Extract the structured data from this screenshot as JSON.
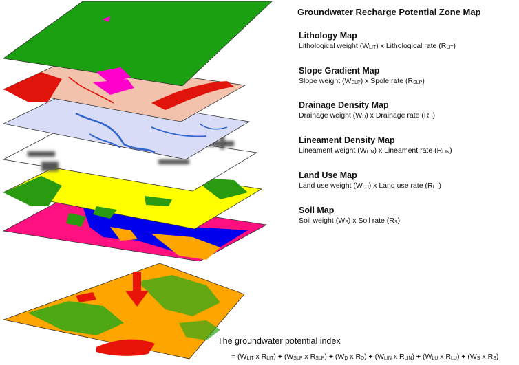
{
  "title": "Groundwater Recharge Potential Zone Map",
  "layers": [
    {
      "name": "Lithology Map",
      "formula": [
        {
          "t": "Lithological weight (W"
        },
        {
          "s": "LIT"
        },
        {
          "t": ") x Lithological rate (R"
        },
        {
          "s": "LIT"
        },
        {
          "t": ")"
        }
      ]
    },
    {
      "name": "Slope Gradient Map",
      "formula": [
        {
          "t": "Slope weight (W"
        },
        {
          "s": "SLP"
        },
        {
          "t": ") x Spole rate (R"
        },
        {
          "s": "SLP"
        },
        {
          "t": ")"
        }
      ]
    },
    {
      "name": "Drainage Density Map",
      "formula": [
        {
          "t": "Drainage weight (W"
        },
        {
          "s": "D"
        },
        {
          "t": ") x Drainage rate (R"
        },
        {
          "s": "D"
        },
        {
          "t": ")"
        }
      ]
    },
    {
      "name": "Lineament Density Map",
      "formula": [
        {
          "t": "Lineament weight (W"
        },
        {
          "s": "LIN"
        },
        {
          "t": ") x Lineament rate (R"
        },
        {
          "s": "LIN"
        },
        {
          "t": ")"
        }
      ]
    },
    {
      "name": "Land Use Map",
      "formula": [
        {
          "t": "Land use weight (W"
        },
        {
          "s": "LU"
        },
        {
          "t": ") x Land use rate (R"
        },
        {
          "s": "LU"
        },
        {
          "t": ")"
        }
      ]
    },
    {
      "name": "Soil Map",
      "formula": [
        {
          "t": "Soil weight (W"
        },
        {
          "s": "S"
        },
        {
          "t": ") x Soil rate (R"
        },
        {
          "s": "S"
        },
        {
          "t": ")"
        }
      ]
    }
  ],
  "index": {
    "title": "The groundwater potential index",
    "formula": [
      {
        "t": "= (W"
      },
      {
        "s": "LIT"
      },
      {
        "t": " x R"
      },
      {
        "s": "LIT"
      },
      {
        "t": ") "
      },
      {
        "b": "+"
      },
      {
        "t": " (W"
      },
      {
        "s": "SLP"
      },
      {
        "t": " x R"
      },
      {
        "s": "SLP"
      },
      {
        "t": ") "
      },
      {
        "b": "+"
      },
      {
        "t": " (W"
      },
      {
        "s": "D"
      },
      {
        "t": " x R"
      },
      {
        "s": "D"
      },
      {
        "t": ") "
      },
      {
        "b": "+"
      },
      {
        "t": " (W"
      },
      {
        "s": "LIN"
      },
      {
        "t": " x R"
      },
      {
        "s": "LIN"
      },
      {
        "t": ") "
      },
      {
        "b": "+"
      },
      {
        "t": " (W"
      },
      {
        "s": "LU"
      },
      {
        "t": " x R"
      },
      {
        "s": "LU"
      },
      {
        "t": ") "
      },
      {
        "b": "+"
      },
      {
        "t": " (W"
      },
      {
        "s": "S"
      },
      {
        "t": " x R"
      },
      {
        "s": "S"
      },
      {
        "t": ")"
      }
    ]
  },
  "colors": {
    "lithology_base": "#1aa010",
    "lithology_accent": "#ff00cc",
    "slope_base": "#f2c2ad",
    "slope_accent": "#e0140a",
    "drainage_base": "#d8dcf6",
    "drainage_stream": "#3366cc",
    "lineament_base": "#ffffff",
    "lineament_mark": "#555555",
    "landuse_base": "#ffff00",
    "landuse_green": "#2a9a10",
    "soil_base": "#ff1080",
    "soil_blue": "#0000ee",
    "soil_orange": "#ffa500",
    "result_base": "#ffa500",
    "result_green": "#2fa81a",
    "result_red": "#e8140a",
    "arrow": "#e8140a"
  }
}
